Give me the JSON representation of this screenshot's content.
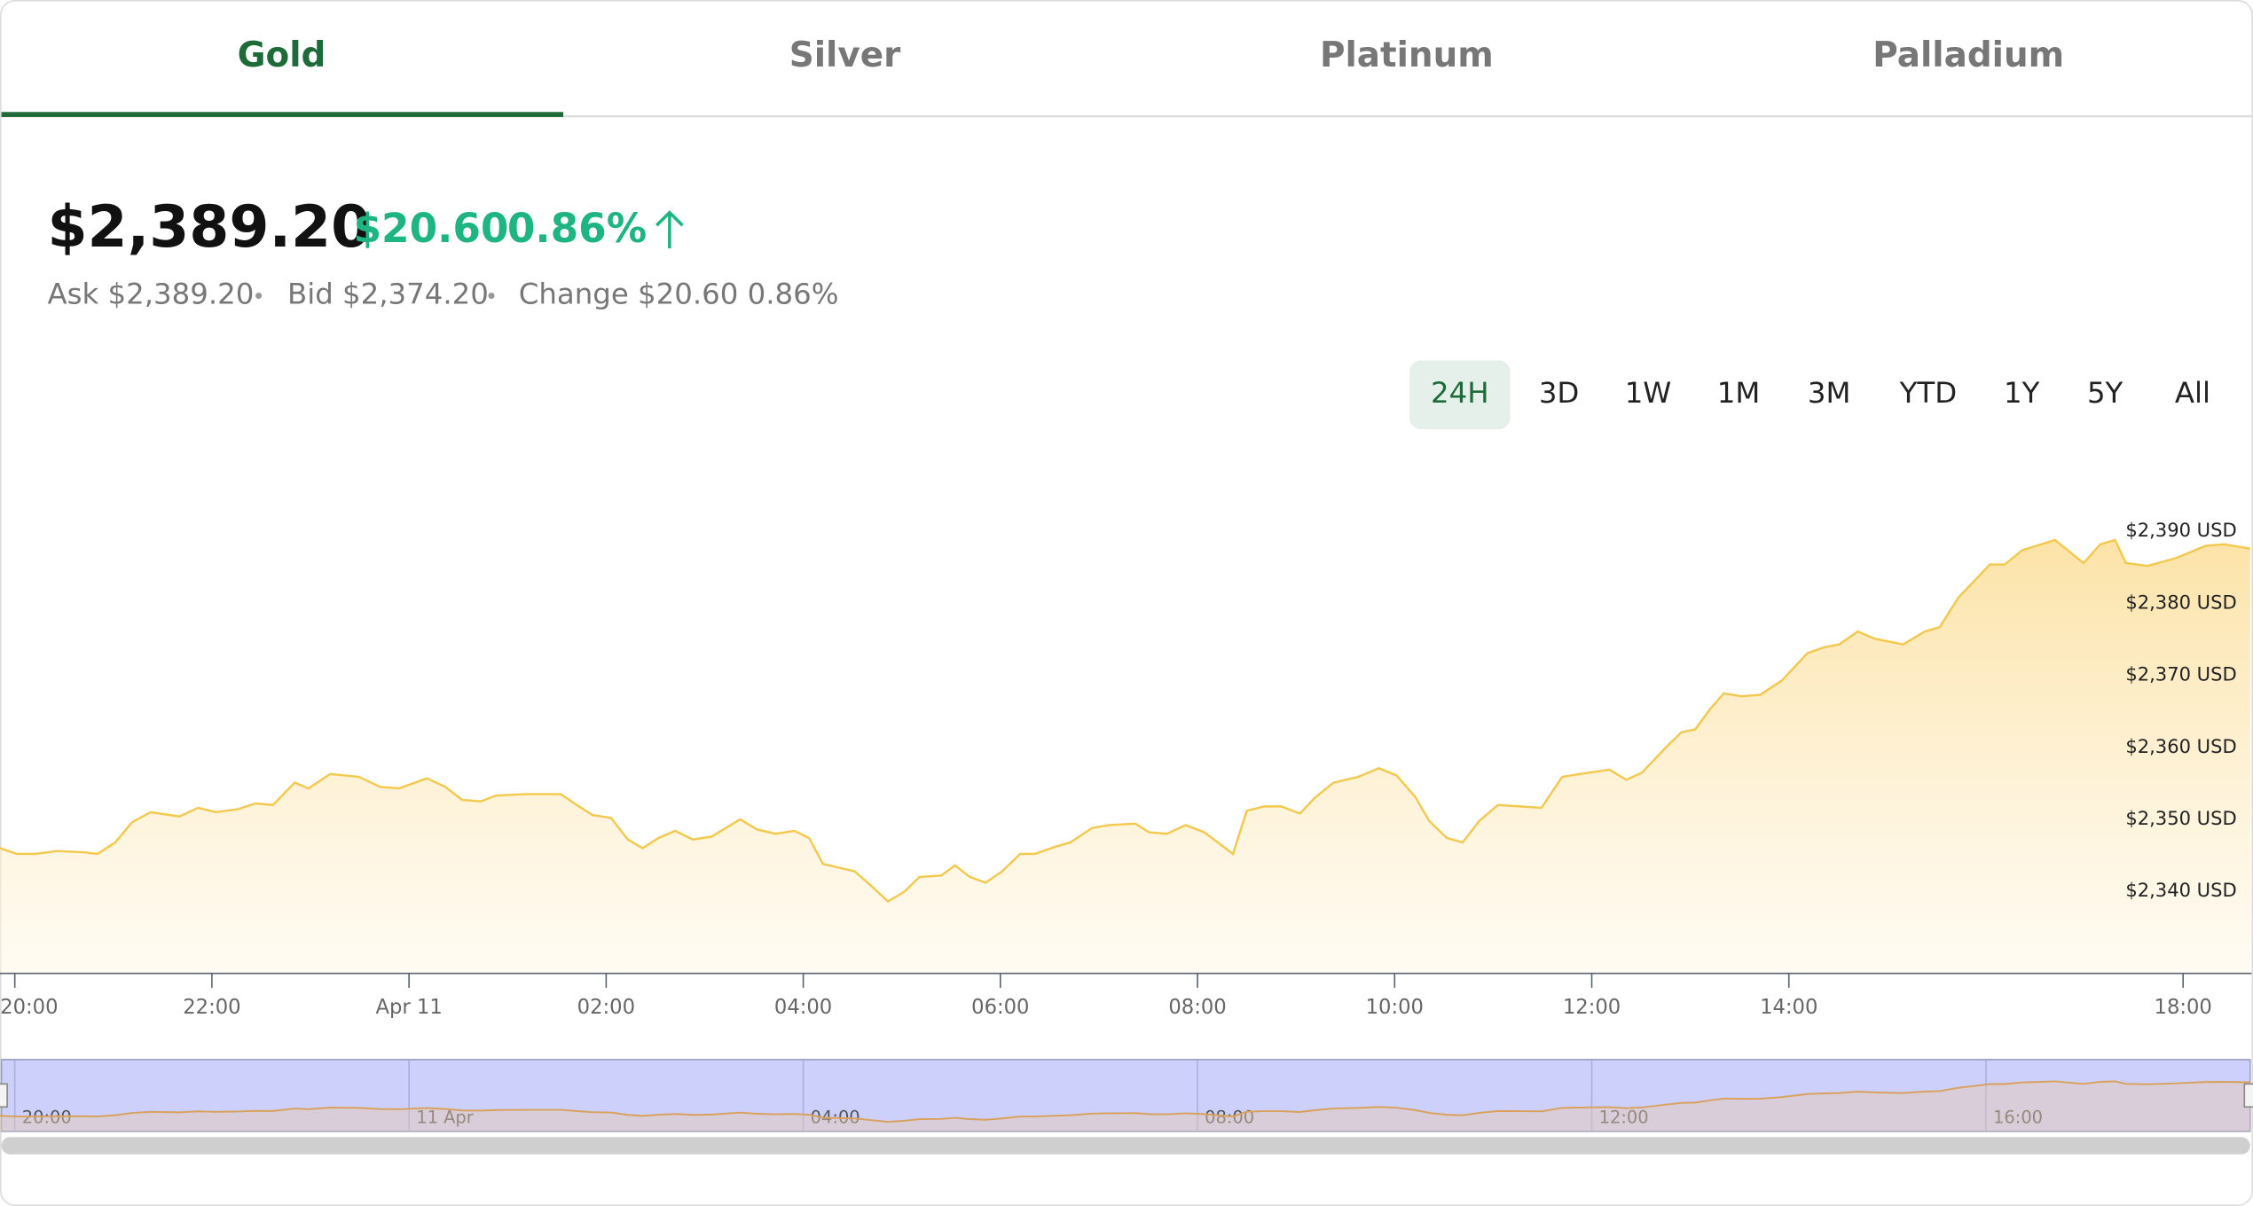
{
  "tabs": [
    "Gold",
    "Silver",
    "Platinum",
    "Palladium"
  ],
  "quote": {
    "price": "$2,389.20",
    "change": "$20.60",
    "change_percent": "0.86%",
    "details": [
      "Ask $2,389.20",
      "Bid $2,374.20",
      "Change $20.60 0.86%"
    ]
  },
  "ranges": [
    "24H",
    "3D",
    "1W",
    "1M",
    "3M",
    "YTD",
    "1Y",
    "5Y",
    "All"
  ],
  "chart_data": {
    "type": "area",
    "color": "#f2c94c",
    "x": [
      19.85,
      20.02,
      20.21,
      20.43,
      20.72,
      20.84,
      21.02,
      21.19,
      21.38,
      21.67,
      21.86,
      22.04,
      22.26,
      22.44,
      22.62,
      22.84,
      22.98,
      23.2,
      23.49,
      23.71,
      23.9,
      24.18,
      24.37,
      24.54,
      24.73,
      24.88,
      25.17,
      25.54,
      25.68,
      25.86,
      26.05,
      26.22,
      26.37,
      26.53,
      26.7,
      26.88,
      27.07,
      27.36,
      27.53,
      27.72,
      27.91,
      28.06,
      28.2,
      28.52,
      28.67,
      28.86,
      29.03,
      29.18,
      29.4,
      29.54,
      29.69,
      29.85,
      30.02,
      30.2,
      30.35,
      30.56,
      30.71,
      30.93,
      31.1,
      31.37,
      31.51,
      31.69,
      31.88,
      32.07,
      32.36,
      32.5,
      32.68,
      32.85,
      33.04,
      33.19,
      33.38,
      33.63,
      33.84,
      34.02,
      34.21,
      34.35,
      34.53,
      34.69,
      34.86,
      35.05,
      35.27,
      35.49,
      35.7,
      35.88,
      36.18,
      36.35,
      36.51,
      36.76,
      36.91,
      37.05,
      37.2,
      37.34,
      37.52,
      37.71,
      37.93,
      38.19,
      38.36,
      38.51,
      38.7,
      38.87,
      39.16,
      39.38,
      39.53,
      39.72,
      40.04,
      40.19,
      40.37,
      40.7,
      40.99,
      41.16,
      41.31,
      41.42,
      41.64,
      41.93,
      42.23,
      42.42,
      42.68
    ],
    "values": [
      2346.0,
      2345.2,
      2345.2,
      2345.6,
      2345.4,
      2345.2,
      2346.8,
      2349.6,
      2351.0,
      2350.4,
      2351.6,
      2351.0,
      2351.4,
      2352.2,
      2352.0,
      2355.1,
      2354.3,
      2356.3,
      2355.9,
      2354.5,
      2354.3,
      2355.7,
      2354.5,
      2352.7,
      2352.5,
      2353.3,
      2353.5,
      2353.5,
      2352.2,
      2350.6,
      2350.2,
      2347.2,
      2346.0,
      2347.4,
      2348.4,
      2347.2,
      2347.6,
      2350.0,
      2348.6,
      2348.0,
      2348.4,
      2347.4,
      2343.8,
      2342.8,
      2341.0,
      2338.6,
      2340.0,
      2342.0,
      2342.2,
      2343.6,
      2342.0,
      2341.2,
      2342.8,
      2345.2,
      2345.2,
      2346.2,
      2346.8,
      2348.8,
      2349.2,
      2349.4,
      2348.2,
      2348.0,
      2349.2,
      2348.2,
      2345.2,
      2351.2,
      2351.8,
      2351.8,
      2350.8,
      2353.0,
      2355.1,
      2355.9,
      2357.1,
      2356.1,
      2353.1,
      2349.8,
      2347.4,
      2346.8,
      2349.8,
      2352.0,
      2351.8,
      2351.6,
      2355.9,
      2356.3,
      2356.9,
      2355.5,
      2356.5,
      2360.1,
      2362.1,
      2362.5,
      2365.3,
      2367.5,
      2367.1,
      2367.3,
      2369.3,
      2373.1,
      2373.9,
      2374.3,
      2376.1,
      2375.1,
      2374.3,
      2376.1,
      2376.7,
      2380.8,
      2385.4,
      2385.4,
      2387.4,
      2388.8,
      2385.6,
      2388.2,
      2388.8,
      2385.6,
      2385.2,
      2386.3,
      2388.0,
      2388.2,
      2387.6
    ],
    "xlim": [
      19.85,
      42.68
    ],
    "xticks": [
      {
        "value": 20,
        "label": "20:00"
      },
      {
        "value": 22,
        "label": "22:00"
      },
      {
        "value": 24,
        "label": "Apr 11"
      },
      {
        "value": 26,
        "label": "02:00"
      },
      {
        "value": 28,
        "label": "04:00"
      },
      {
        "value": 30,
        "label": "06:00"
      },
      {
        "value": 32,
        "label": "08:00"
      },
      {
        "value": 34,
        "label": "10:00"
      },
      {
        "value": 36,
        "label": "12:00"
      },
      {
        "value": 38,
        "label": "14:00"
      },
      {
        "value": 42,
        "label": "18:00"
      }
    ],
    "ylim": [
      2328.6,
      2398
    ],
    "yticks": [
      {
        "value": 2340,
        "label": "$2,340 USD"
      },
      {
        "value": 2350,
        "label": "$2,350 USD"
      },
      {
        "value": 2360,
        "label": "$2,360 USD"
      },
      {
        "value": 2370,
        "label": "$2,370 USD"
      },
      {
        "value": 2380,
        "label": "$2,380 USD"
      },
      {
        "value": 2390,
        "label": "$2,390 USD"
      }
    ],
    "navigator": {
      "color": "#d9a15c",
      "xticks": [
        {
          "value": 20,
          "label": "20:00"
        },
        {
          "value": 24,
          "label": "11 Apr"
        },
        {
          "value": 28,
          "label": "04:00"
        },
        {
          "value": 32,
          "label": "08:00"
        },
        {
          "value": 36,
          "label": "12:00"
        },
        {
          "value": 40,
          "label": "16:00"
        }
      ]
    }
  }
}
